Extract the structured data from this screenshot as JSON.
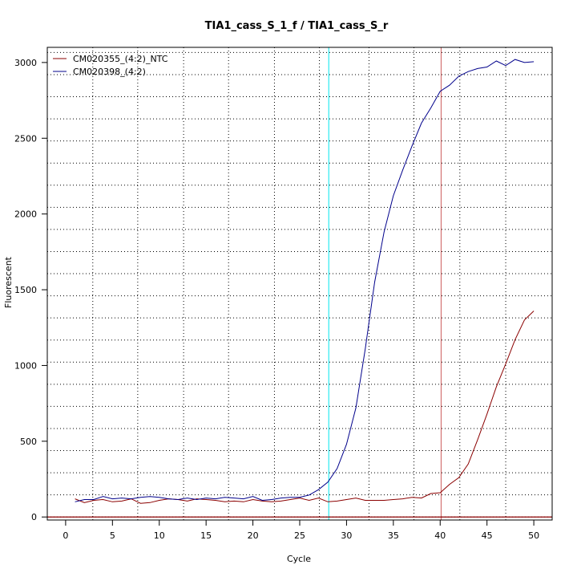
{
  "chart_data": {
    "type": "line",
    "title": "TIA1_cass_S_1_f / TIA1_cass_S_r",
    "xlabel": "Cycle",
    "ylabel": "Fluorescent",
    "xlim": [
      -1.96,
      51.96
    ],
    "ylim": [
      -20,
      3100
    ],
    "x_ticks": [
      0,
      5,
      10,
      15,
      20,
      25,
      30,
      35,
      40,
      45,
      50
    ],
    "y_ticks": [
      0,
      500,
      1000,
      1500,
      2000,
      2500,
      3000
    ],
    "grid": "dotted",
    "vertical_gridlines": [
      2.9,
      7.7,
      12.6,
      17.4,
      22.3,
      27.1,
      32.4,
      37.2,
      42.1,
      47.0
    ],
    "horizontal_gridlines": [
      0,
      146,
      292,
      438,
      584,
      730,
      876,
      1022,
      1168,
      1314,
      1460,
      1606,
      1752,
      1898,
      2044,
      2190,
      2336,
      2482,
      2628,
      2774,
      2920,
      3066
    ],
    "threshold_lines": [
      {
        "x": 28.1,
        "color": "#00e5ee"
      },
      {
        "x": 40.1,
        "color": "#cd5c5c"
      }
    ],
    "baseline": {
      "y": 0,
      "color": "#8b0000"
    },
    "legend_position": "top-left",
    "x": [
      1,
      2,
      3,
      4,
      5,
      6,
      7,
      8,
      9,
      10,
      11,
      12,
      13,
      14,
      15,
      16,
      17,
      18,
      19,
      20,
      21,
      22,
      23,
      24,
      25,
      26,
      27,
      28,
      29,
      30,
      31,
      32,
      33,
      34,
      35,
      36,
      37,
      38,
      39,
      40,
      41,
      42,
      43,
      44,
      45,
      46,
      47,
      48,
      49,
      50
    ],
    "series": [
      {
        "name": "CM020355_(4:2)_NTC",
        "color": "#8b0000",
        "values": [
          120,
          95,
          110,
          115,
          100,
          105,
          120,
          90,
          95,
          110,
          120,
          115,
          105,
          120,
          115,
          110,
          100,
          105,
          100,
          115,
          105,
          100,
          105,
          115,
          125,
          110,
          125,
          100,
          105,
          115,
          125,
          110,
          110,
          110,
          115,
          120,
          130,
          125,
          155,
          160,
          215,
          260,
          350,
          510,
          680,
          860,
          1010,
          1170,
          1300,
          1360
        ]
      },
      {
        "name": "CM020398_(4:2)",
        "color": "#00008b",
        "values": [
          100,
          115,
          115,
          135,
          120,
          125,
          120,
          130,
          135,
          130,
          120,
          115,
          125,
          115,
          125,
          120,
          130,
          125,
          120,
          135,
          110,
          115,
          125,
          130,
          130,
          145,
          180,
          230,
          320,
          480,
          720,
          1110,
          1550,
          1880,
          2120,
          2290,
          2450,
          2600,
          2700,
          2810,
          2850,
          2910,
          2940,
          2960,
          2970,
          3010,
          2980,
          3020,
          3000,
          3005
        ]
      }
    ]
  }
}
